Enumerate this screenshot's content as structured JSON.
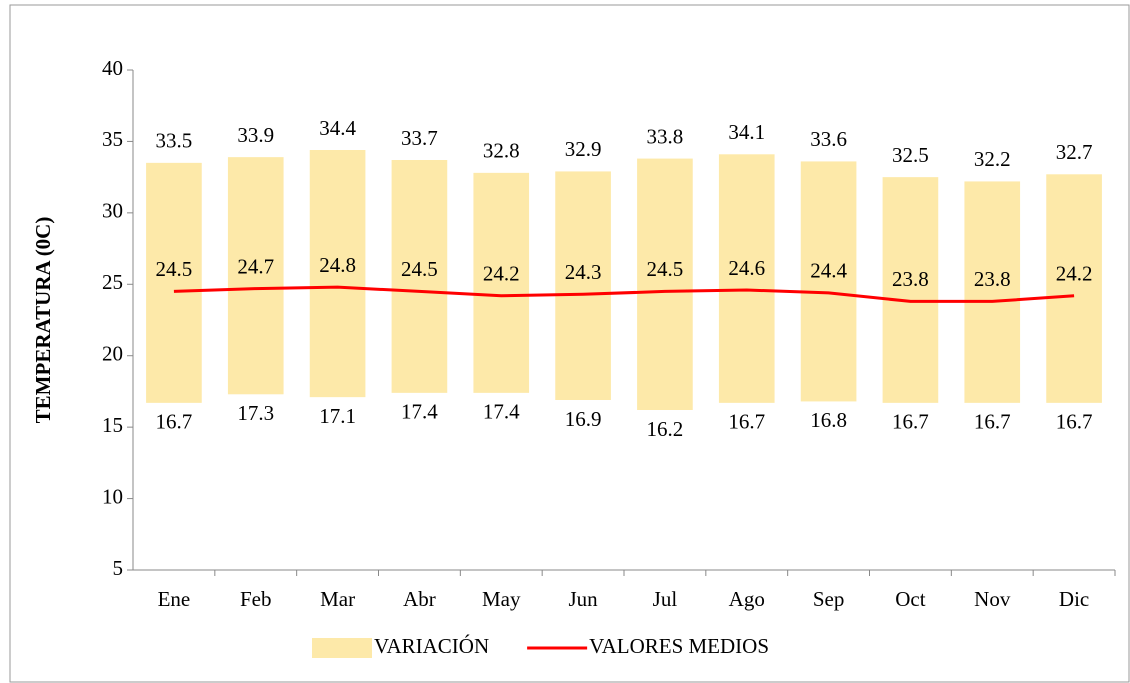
{
  "chart_data": {
    "type": "range-line",
    "ylabel": "TEMPERATURA (0C)",
    "categories": [
      "Ene",
      "Feb",
      "Mar",
      "Abr",
      "May",
      "Jun",
      "Jul",
      "Ago",
      "Sep",
      "Oct",
      "Nov",
      "Dic"
    ],
    "series": [
      {
        "name": "VARIACIÓN",
        "type": "range",
        "color": "#fde9a9",
        "low": [
          16.7,
          17.3,
          17.1,
          17.4,
          17.4,
          16.9,
          16.2,
          16.7,
          16.8,
          16.7,
          16.7,
          16.7
        ],
        "high": [
          33.5,
          33.9,
          34.4,
          33.7,
          32.8,
          32.9,
          33.8,
          34.1,
          33.6,
          32.5,
          32.2,
          32.7
        ]
      },
      {
        "name": "VALORES MEDIOS",
        "type": "line",
        "color": "#ff0000",
        "values": [
          24.5,
          24.7,
          24.8,
          24.5,
          24.2,
          24.3,
          24.5,
          24.6,
          24.4,
          23.8,
          23.8,
          24.2
        ]
      }
    ],
    "ylim": [
      5,
      40
    ],
    "yticks": [
      5,
      10,
      15,
      20,
      25,
      30,
      35,
      40
    ],
    "grid": false,
    "legend": "bottom"
  }
}
